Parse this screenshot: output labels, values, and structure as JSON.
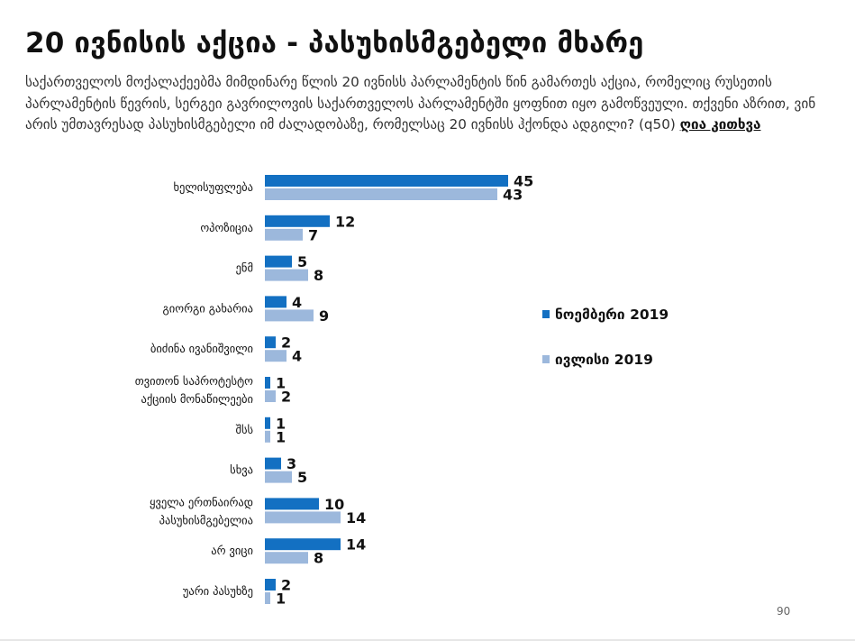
{
  "header": {
    "title": "20 ივნისის აქცია - პასუხისმგებელი მხარე",
    "question": "საქართველოს მოქალაქეებმა მიმდინარე წლის 20 ივნისს პარლამენტის წინ გამართეს აქცია, რომელიც რუსეთის პარლამენტის წევრის, სერგეი გავრილოვის საქართველოს პარლამენტში ყოფნით იყო გამოწვეული. თქვენი აზრით, ვინ არის უმთავრესად პასუხისმგებელი იმ ძალადობაზე, რომელსაც 20 ივნისს ჰქონდა ადგილი? (q50)",
    "open_question": "ღია კითხვა"
  },
  "chart_data": {
    "type": "bar",
    "orientation": "horizontal",
    "categories": [
      [
        "ხელისუფლება"
      ],
      [
        "ოპოზიცია"
      ],
      [
        "ენმ"
      ],
      [
        "გიორგი გახარია"
      ],
      [
        "ბიძინა ივანიშვილი"
      ],
      [
        "თვითონ საპროტესტო",
        "აქციის მონაწილეები"
      ],
      [
        "შსს"
      ],
      [
        "სხვა"
      ],
      [
        "ყველა ერთნაირად",
        "პასუხისმგებელია"
      ],
      [
        "არ ვიცი"
      ],
      [
        "უარი პასუხზე"
      ]
    ],
    "series": [
      {
        "name": "ნოემბერი 2019",
        "color": "#1370c2",
        "values": [
          45,
          12,
          5,
          4,
          2,
          1,
          1,
          3,
          10,
          14,
          2
        ]
      },
      {
        "name": "ივლისი 2019",
        "color": "#9cb8dc",
        "values": [
          43,
          7,
          8,
          9,
          4,
          2,
          1,
          5,
          14,
          8,
          1
        ]
      }
    ],
    "legend_position": "right",
    "grid": false
  },
  "footer": {
    "page_number": "90"
  }
}
